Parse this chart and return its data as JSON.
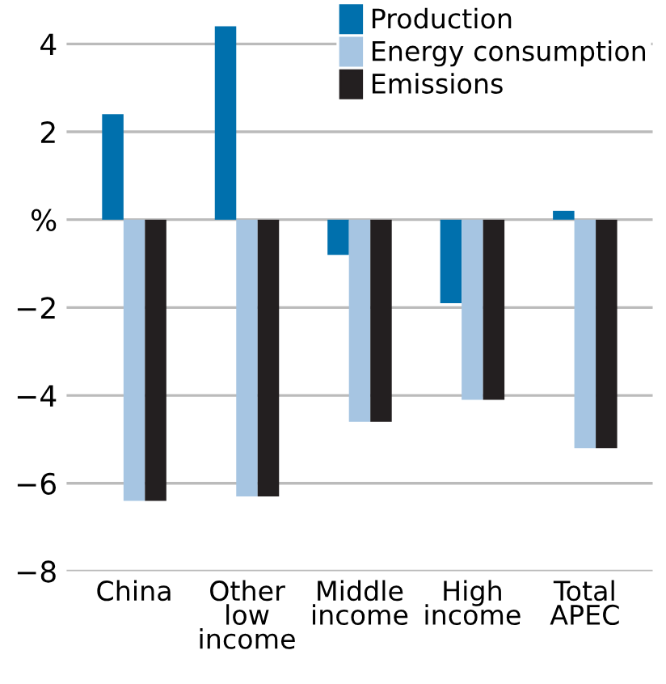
{
  "chart_data": {
    "type": "bar",
    "categories": [
      "China",
      "Other\nlow\nincome",
      "Middle\nincome",
      "High\nincome",
      "Total\nAPEC"
    ],
    "series": [
      {
        "name": "Production",
        "color": "#0070ad",
        "values": [
          2.4,
          4.4,
          -0.8,
          -1.9,
          0.2
        ]
      },
      {
        "name": "Energy consumption",
        "color": "#a6c5e2",
        "values": [
          -6.4,
          -6.3,
          -4.6,
          -4.1,
          -5.2
        ]
      },
      {
        "name": "Emissions",
        "color": "#231f20",
        "values": [
          -6.4,
          -6.3,
          -4.6,
          -4.1,
          -5.2
        ]
      }
    ],
    "ylim": [
      -8,
      5
    ],
    "yticks": [
      -8,
      -6,
      -4,
      -2,
      {
        "value": 0,
        "label": "%"
      },
      2,
      4
    ],
    "grid": "y",
    "legend": "top right"
  }
}
